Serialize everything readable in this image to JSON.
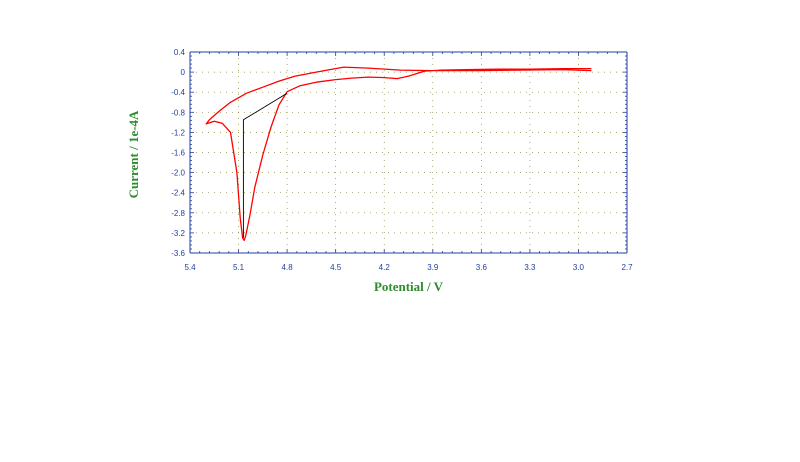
{
  "chart_data": {
    "type": "line",
    "xlabel": "Potential / V",
    "ylabel": "Current / 1e-4A",
    "xlim": [
      5.4,
      2.7
    ],
    "ylim": [
      -3.6,
      0.4
    ],
    "x_reversed": true,
    "x_ticks": [
      "5.4",
      "5.1",
      "4.8",
      "4.5",
      "4.2",
      "3.9",
      "3.6",
      "3.3",
      "3.0",
      "2.7"
    ],
    "y_ticks": [
      "0.4",
      "0",
      "-0.4",
      "-0.8",
      "-1.2",
      "-1.6",
      "-2.0",
      "-2.4",
      "-2.8",
      "-3.2",
      "-3.6"
    ],
    "grid": true,
    "colors": {
      "axis": "#1f3f9f",
      "curve": "#ff0000",
      "baseline": "#000000",
      "grid": "#8a8a3a",
      "axis_title": "#2e8b2e"
    },
    "series": [
      {
        "role": "cv-curve",
        "points": [
          [
            2.92,
            0.07
          ],
          [
            3.1,
            0.07
          ],
          [
            3.3,
            0.06
          ],
          [
            3.5,
            0.06
          ],
          [
            3.7,
            0.05
          ],
          [
            3.85,
            0.04
          ],
          [
            3.95,
            0.02
          ],
          [
            4.05,
            -0.08
          ],
          [
            4.12,
            -0.13
          ],
          [
            4.2,
            -0.11
          ],
          [
            4.3,
            -0.1
          ],
          [
            4.4,
            -0.12
          ],
          [
            4.5,
            -0.15
          ],
          [
            4.62,
            -0.2
          ],
          [
            4.72,
            -0.27
          ],
          [
            4.8,
            -0.39
          ],
          [
            4.85,
            -0.65
          ],
          [
            4.9,
            -1.1
          ],
          [
            4.95,
            -1.65
          ],
          [
            5.0,
            -2.3
          ],
          [
            5.03,
            -2.85
          ],
          [
            5.055,
            -3.25
          ],
          [
            5.065,
            -3.35
          ],
          [
            5.075,
            -3.3
          ],
          [
            5.09,
            -2.9
          ],
          [
            5.11,
            -2.0
          ],
          [
            5.15,
            -1.2
          ],
          [
            5.2,
            -1.02
          ],
          [
            5.25,
            -0.98
          ],
          [
            5.3,
            -1.03
          ],
          [
            5.28,
            -0.95
          ],
          [
            5.22,
            -0.78
          ],
          [
            5.15,
            -0.6
          ],
          [
            5.05,
            -0.42
          ],
          [
            4.95,
            -0.3
          ],
          [
            4.85,
            -0.18
          ],
          [
            4.75,
            -0.08
          ],
          [
            4.62,
            0.0
          ],
          [
            4.45,
            0.1
          ],
          [
            4.3,
            0.08
          ],
          [
            4.1,
            0.04
          ],
          [
            3.9,
            0.03
          ],
          [
            3.6,
            0.03
          ],
          [
            3.35,
            0.04
          ],
          [
            3.1,
            0.05
          ],
          [
            2.92,
            0.03
          ]
        ]
      },
      {
        "role": "baseline",
        "points": [
          [
            4.8,
            -0.42
          ],
          [
            5.07,
            -0.95
          ],
          [
            5.07,
            -3.3
          ]
        ]
      }
    ]
  }
}
